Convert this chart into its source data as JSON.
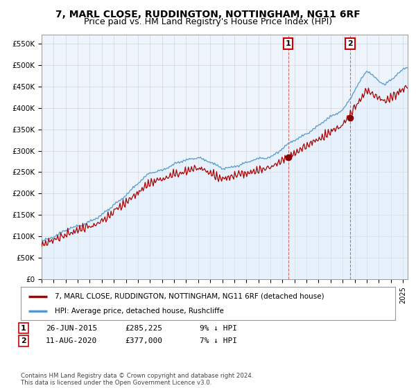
{
  "title": "7, MARL CLOSE, RUDDINGTON, NOTTINGHAM, NG11 6RF",
  "subtitle": "Price paid vs. HM Land Registry's House Price Index (HPI)",
  "ylabel_ticks": [
    "£0",
    "£50K",
    "£100K",
    "£150K",
    "£200K",
    "£250K",
    "£300K",
    "£350K",
    "£400K",
    "£450K",
    "£500K",
    "£550K"
  ],
  "ytick_values": [
    0,
    50000,
    100000,
    150000,
    200000,
    250000,
    300000,
    350000,
    400000,
    450000,
    500000,
    550000
  ],
  "ylim": [
    0,
    570000
  ],
  "xlim_start": 1995.0,
  "xlim_end": 2025.4,
  "sale1_date": 2015.484,
  "sale1_price": 285225,
  "sale1_label": "1",
  "sale2_date": 2020.614,
  "sale2_price": 377000,
  "sale2_label": "2",
  "property_line_color": "#aa0000",
  "hpi_line_color": "#5599cc",
  "hpi_fill_color": "#ddeeff",
  "background_color": "#eef4fb",
  "grid_color": "#cccccc",
  "legend_label_property": "7, MARL CLOSE, RUDDINGTON, NOTTINGHAM, NG11 6RF (detached house)",
  "legend_label_hpi": "HPI: Average price, detached house, Rushcliffe",
  "footnote": "Contains HM Land Registry data © Crown copyright and database right 2024.\nThis data is licensed under the Open Government Licence v3.0.",
  "title_fontsize": 10,
  "subtitle_fontsize": 9
}
